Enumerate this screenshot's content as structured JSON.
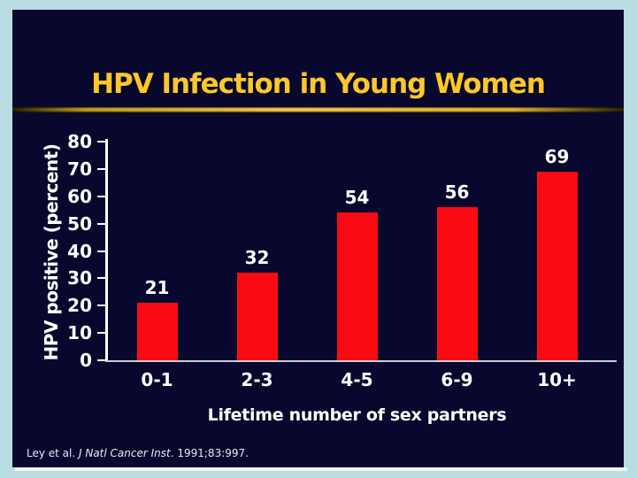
{
  "slide": {
    "title": "HPV Infection in Young Women",
    "citation": {
      "prefix": "Ley et al. ",
      "italic": "J Natl Cancer Inst",
      "suffix": ". 1991;83:997."
    }
  },
  "chart_data": {
    "type": "bar",
    "categories": [
      "0-1",
      "2-3",
      "4-5",
      "6-9",
      "10+"
    ],
    "values": [
      21,
      32,
      54,
      56,
      69
    ],
    "title": "HPV Infection in Young Women",
    "xlabel": "Lifetime number of sex partners",
    "ylabel": "HPV positive (percent)",
    "ylim": [
      0,
      80
    ],
    "ytick_step": 10,
    "bar_value_labels": true,
    "grid": false,
    "legend": false
  },
  "colors": {
    "frame_bg": "#b9dde3",
    "slide_bg": "#08082e",
    "title_text": "#fdc72c",
    "divider_gold": "#ffd24a",
    "bar": "#fb0a14",
    "axis_text": "#ffffff",
    "baseline": "#c9cede",
    "citation_text": "#e9eaf0"
  }
}
